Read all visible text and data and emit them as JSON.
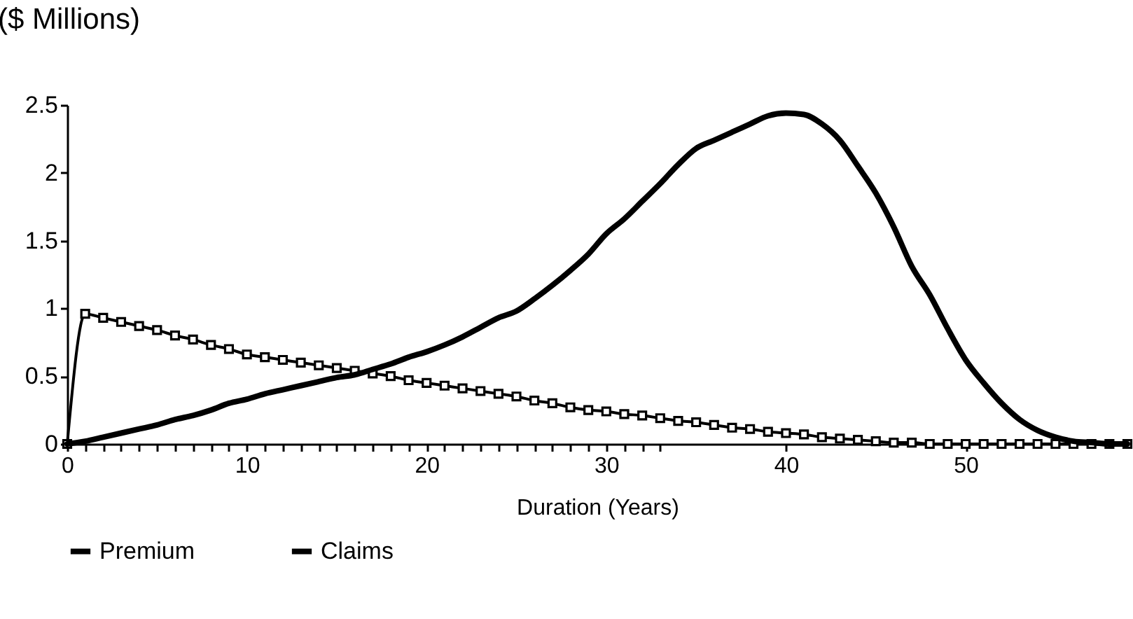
{
  "chart_data": {
    "type": "line",
    "ylabel": "($ Millions)",
    "xlabel": "Duration (Years)",
    "xlim": [
      0,
      59
    ],
    "ylim": [
      0,
      2.5
    ],
    "yticks": [
      0,
      0.5,
      1,
      1.5,
      2,
      2.5
    ],
    "xticks": [
      0,
      {
        "value": 1,
        "label": null
      },
      {
        "value": 2,
        "label": null
      },
      {
        "value": 3,
        "label": null
      },
      {
        "value": 4,
        "label": null
      },
      {
        "value": 5,
        "label": null
      },
      {
        "value": 6,
        "label": null
      },
      {
        "value": 7,
        "label": null
      },
      {
        "value": 8,
        "label": null
      },
      {
        "value": 9,
        "label": null
      },
      10,
      {
        "value": 11,
        "label": null
      },
      {
        "value": 12,
        "label": null
      },
      {
        "value": 13,
        "label": null
      },
      {
        "value": 14,
        "label": null
      },
      {
        "value": 15,
        "label": null
      },
      {
        "value": 16,
        "label": null
      },
      {
        "value": 17,
        "label": null
      },
      {
        "value": 18,
        "label": null
      },
      {
        "value": 19,
        "label": null
      },
      20,
      {
        "value": 21,
        "label": null
      },
      {
        "value": 22,
        "label": null
      },
      {
        "value": 23,
        "label": null
      },
      {
        "value": 24,
        "label": null
      },
      {
        "value": 25,
        "label": null
      },
      {
        "value": 26,
        "label": null
      },
      {
        "value": 27,
        "label": null
      },
      {
        "value": 28,
        "label": null
      },
      {
        "value": 29,
        "label": null
      },
      30,
      {
        "value": 31,
        "label": null
      },
      {
        "value": 32,
        "label": null
      },
      {
        "value": 33,
        "label": null
      },
      40,
      50
    ],
    "x": [
      0,
      1,
      2,
      3,
      4,
      5,
      6,
      7,
      8,
      9,
      10,
      11,
      12,
      13,
      14,
      15,
      16,
      17,
      18,
      19,
      20,
      21,
      22,
      23,
      24,
      25,
      26,
      27,
      28,
      29,
      30,
      31,
      32,
      33,
      34,
      35,
      36,
      37,
      38,
      39,
      40,
      41,
      42,
      43,
      44,
      45,
      46,
      47,
      48,
      49,
      50,
      51,
      52,
      53,
      54,
      55,
      56,
      57,
      58,
      59
    ],
    "legend": "bottom",
    "series": [
      {
        "name": "Premium",
        "color": "#000000",
        "marker": "square",
        "values": [
          0,
          0.96,
          0.93,
          0.9,
          0.87,
          0.84,
          0.8,
          0.77,
          0.73,
          0.7,
          0.66,
          0.64,
          0.62,
          0.6,
          0.58,
          0.56,
          0.54,
          0.52,
          0.5,
          0.47,
          0.45,
          0.43,
          0.41,
          0.39,
          0.37,
          0.35,
          0.32,
          0.3,
          0.27,
          0.25,
          0.24,
          0.22,
          0.21,
          0.19,
          0.17,
          0.16,
          0.14,
          0.12,
          0.11,
          0.09,
          0.08,
          0.07,
          0.05,
          0.04,
          0.03,
          0.02,
          0.01,
          0.01,
          0,
          0,
          0,
          0,
          0,
          0,
          0,
          0,
          0,
          0,
          0,
          0
        ]
      },
      {
        "name": "Claims",
        "color": "#000000",
        "marker": "none",
        "values": [
          0,
          0.02,
          0.05,
          0.08,
          0.11,
          0.14,
          0.18,
          0.21,
          0.25,
          0.3,
          0.33,
          0.37,
          0.4,
          0.43,
          0.46,
          0.49,
          0.51,
          0.55,
          0.59,
          0.64,
          0.68,
          0.73,
          0.79,
          0.86,
          0.93,
          0.98,
          1.07,
          1.17,
          1.28,
          1.4,
          1.55,
          1.66,
          1.79,
          1.92,
          2.06,
          2.18,
          2.24,
          2.3,
          2.36,
          2.42,
          2.44,
          2.43,
          2.36,
          2.24,
          2.05,
          1.85,
          1.6,
          1.31,
          1.1,
          0.85,
          0.62,
          0.45,
          0.3,
          0.18,
          0.1,
          0.05,
          0.02,
          0.01,
          0,
          0
        ]
      }
    ]
  }
}
